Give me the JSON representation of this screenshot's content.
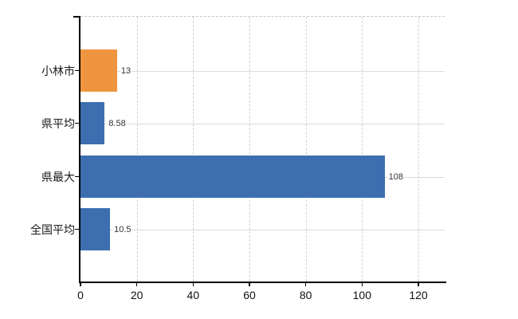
{
  "chart_data": {
    "type": "bar",
    "orientation": "horizontal",
    "title": "",
    "xlabel": "",
    "ylabel": "",
    "categories": [
      "小林市",
      "県平均",
      "県最大",
      "全国平均"
    ],
    "values": [
      13,
      8.58,
      108,
      10.5
    ],
    "data_labels": [
      "13",
      "8.58",
      "108",
      "10.5"
    ],
    "bar_colors": [
      "#EF9540",
      "#3C6EB0",
      "#3C6EB0",
      "#3C6EB0"
    ],
    "x_ticks": [
      0,
      20,
      40,
      60,
      80,
      100,
      120
    ],
    "x_tick_labels": [
      "0",
      "20",
      "40",
      "60",
      "80",
      "100",
      "120"
    ],
    "xlim": [
      0,
      130
    ],
    "grid": true,
    "grid_style": {
      "vertical": "dashed",
      "horizontal": "solid"
    },
    "legend": null
  },
  "colors": {
    "bar_blue": "#3C6EB0",
    "bar_orange": "#EF9540",
    "axis": "#000000",
    "grid_horizontal": "#d6ddd6",
    "grid_vertical": "#d6d0d6",
    "category_text": "#1a1a1a",
    "value_text": "#333333",
    "background": "#ffffff"
  }
}
